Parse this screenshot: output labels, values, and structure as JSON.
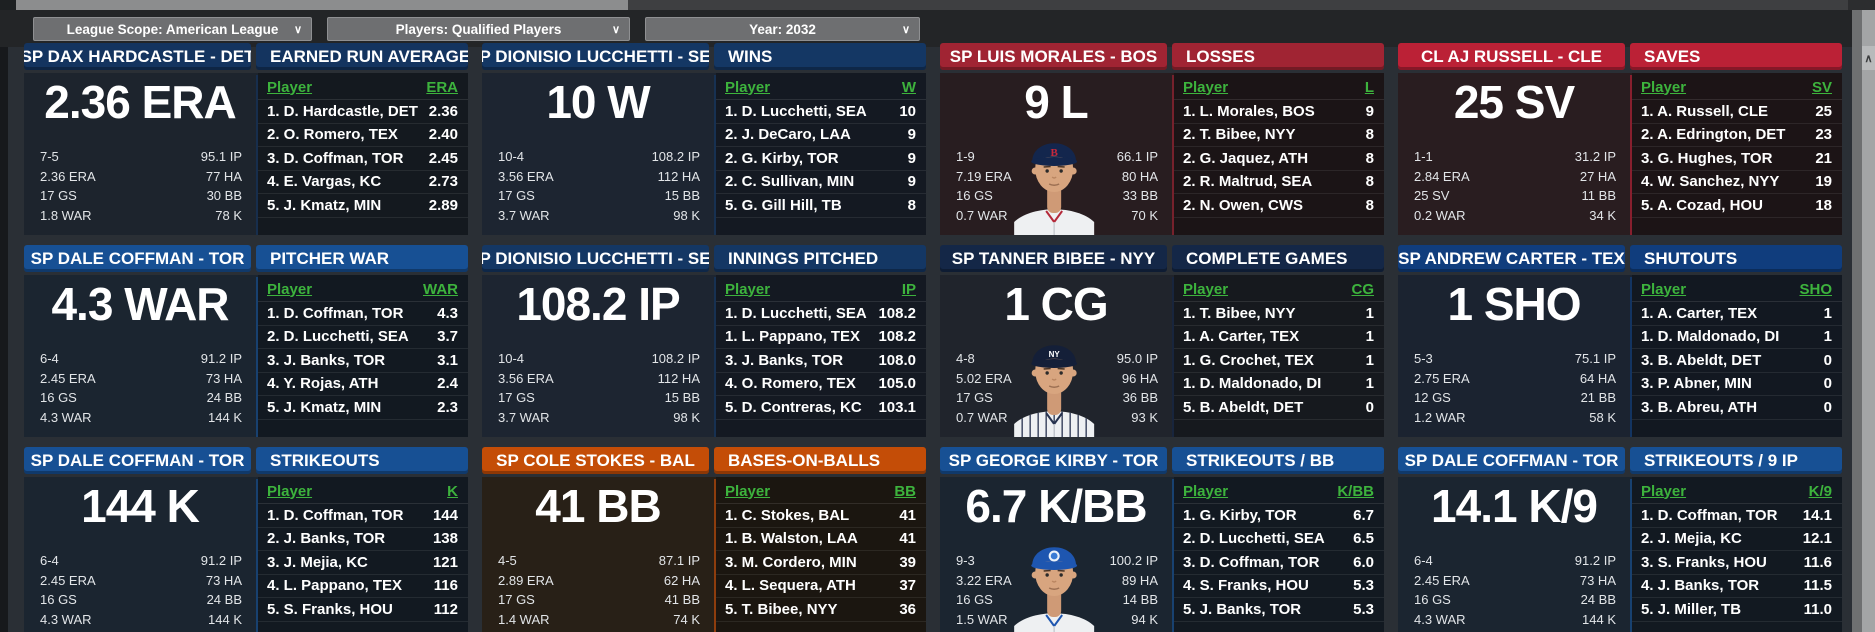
{
  "toolbar": {
    "dropdowns": [
      {
        "label": "League Scope: American League"
      },
      {
        "label": "Players: Qualified Players"
      },
      {
        "label": "Year: 2032"
      }
    ]
  },
  "icons": {
    "dropdown_chevron": "∨",
    "scroll_up_arrow": "∧"
  },
  "colors": {
    "green_accent": "#3db33d",
    "page_bg": "#2a2f35",
    "toolbar_bg": "#232527"
  },
  "leader_header_label": "Player",
  "panels": [
    {
      "player_header": "SP DAX HARDCASTLE - DET",
      "category": "EARNED RUN AVERAGE",
      "big_stat": "2.36 ERA",
      "col_label": "ERA",
      "accent": "#14345f",
      "body": "#1d242d",
      "photo": null,
      "stats_left": [
        "7-5",
        "2.36 ERA",
        "17 GS",
        "1.8 WAR"
      ],
      "stats_right": [
        "95.1 IP",
        "77 HA",
        "30 BB",
        "78 K"
      ],
      "leaders": [
        {
          "rank": "1.",
          "name": "D. Hardcastle, DET",
          "value": "2.36"
        },
        {
          "rank": "2.",
          "name": "O. Romero, TEX",
          "value": "2.40"
        },
        {
          "rank": "3.",
          "name": "D. Coffman, TOR",
          "value": "2.45"
        },
        {
          "rank": "4.",
          "name": "E. Vargas, KC",
          "value": "2.73"
        },
        {
          "rank": "5.",
          "name": "J. Kmatz, MIN",
          "value": "2.89"
        }
      ]
    },
    {
      "player_header": "SP DIONISIO LUCCHETTI - SEA",
      "category": "WINS",
      "big_stat": "10 W",
      "col_label": "W",
      "accent": "#143764",
      "body": "#1d2531",
      "photo": null,
      "stats_left": [
        "10-4",
        "3.56 ERA",
        "17 GS",
        "3.7 WAR"
      ],
      "stats_right": [
        "108.2 IP",
        "112 HA",
        "15 BB",
        "98 K"
      ],
      "leaders": [
        {
          "rank": "1.",
          "name": "D. Lucchetti, SEA",
          "value": "10"
        },
        {
          "rank": "2.",
          "name": "J. DeCaro, LAA",
          "value": "9"
        },
        {
          "rank": "2.",
          "name": "G. Kirby, TOR",
          "value": "9"
        },
        {
          "rank": "2.",
          "name": "C. Sullivan, MIN",
          "value": "9"
        },
        {
          "rank": "5.",
          "name": "G. Gill Hill, TB",
          "value": "8"
        }
      ]
    },
    {
      "player_header": "SP LUIS MORALES - BOS",
      "category": "LOSSES",
      "big_stat": "9 L",
      "col_label": "L",
      "accent": "#a02433",
      "body": "#281d20",
      "photo": "bos",
      "stats_left": [
        "1-9",
        "7.19 ERA",
        "16 GS",
        "0.7 WAR"
      ],
      "stats_right": [
        "66.1 IP",
        "80 HA",
        "33 BB",
        "70 K"
      ],
      "leaders": [
        {
          "rank": "1.",
          "name": "L. Morales, BOS",
          "value": "9"
        },
        {
          "rank": "2.",
          "name": "T. Bibee, NYY",
          "value": "8"
        },
        {
          "rank": "2.",
          "name": "G. Jaquez, ATH",
          "value": "8"
        },
        {
          "rank": "2.",
          "name": "R. Maltrud, SEA",
          "value": "8"
        },
        {
          "rank": "2.",
          "name": "N. Owen, CWS",
          "value": "8"
        }
      ]
    },
    {
      "player_header": "CL AJ RUSSELL - CLE",
      "category": "SAVES",
      "big_stat": "25 SV",
      "col_label": "SV",
      "accent": "#bb2136",
      "body": "#291d20",
      "photo": null,
      "stats_left": [
        "1-1",
        "2.84 ERA",
        "25 SV",
        "0.2 WAR"
      ],
      "stats_right": [
        "31.2 IP",
        "27 HA",
        "11 BB",
        "34 K"
      ],
      "leaders": [
        {
          "rank": "1.",
          "name": "A. Russell, CLE",
          "value": "25"
        },
        {
          "rank": "2.",
          "name": "A. Edrington, DET",
          "value": "23"
        },
        {
          "rank": "3.",
          "name": "G. Hughes, TOR",
          "value": "21"
        },
        {
          "rank": "4.",
          "name": "W. Sanchez, NYY",
          "value": "19"
        },
        {
          "rank": "5.",
          "name": "A. Cozad, HOU",
          "value": "18"
        }
      ]
    },
    {
      "player_header": "SP DALE COFFMAN - TOR",
      "category": "PITCHER WAR",
      "big_stat": "4.3 WAR",
      "col_label": "WAR",
      "accent": "#175094",
      "body": "#1b2530",
      "photo": null,
      "stats_left": [
        "6-4",
        "2.45 ERA",
        "16 GS",
        "4.3 WAR"
      ],
      "stats_right": [
        "91.2 IP",
        "73 HA",
        "24 BB",
        "144 K"
      ],
      "leaders": [
        {
          "rank": "1.",
          "name": "D. Coffman, TOR",
          "value": "4.3"
        },
        {
          "rank": "2.",
          "name": "D. Lucchetti, SEA",
          "value": "3.7"
        },
        {
          "rank": "3.",
          "name": "J. Banks, TOR",
          "value": "3.1"
        },
        {
          "rank": "4.",
          "name": "Y. Rojas, ATH",
          "value": "2.4"
        },
        {
          "rank": "5.",
          "name": "J. Kmatz, MIN",
          "value": "2.3"
        }
      ]
    },
    {
      "player_header": "SP DIONISIO LUCCHETTI - SEA",
      "category": "INNINGS PITCHED",
      "big_stat": "108.2 IP",
      "col_label": "IP",
      "accent": "#143764",
      "body": "#1d2531",
      "photo": null,
      "stats_left": [
        "10-4",
        "3.56 ERA",
        "17 GS",
        "3.7 WAR"
      ],
      "stats_right": [
        "108.2 IP",
        "112 HA",
        "15 BB",
        "98 K"
      ],
      "leaders": [
        {
          "rank": "1.",
          "name": "D. Lucchetti, SEA",
          "value": "108.2"
        },
        {
          "rank": "1.",
          "name": "L. Pappano, TEX",
          "value": "108.2"
        },
        {
          "rank": "3.",
          "name": "J. Banks, TOR",
          "value": "108.0"
        },
        {
          "rank": "4.",
          "name": "O. Romero, TEX",
          "value": "105.0"
        },
        {
          "rank": "5.",
          "name": "D. Contreras, KC",
          "value": "103.1"
        }
      ]
    },
    {
      "player_header": "SP TANNER BIBEE - NYY",
      "category": "COMPLETE GAMES",
      "big_stat": "1 CG",
      "col_label": "CG",
      "accent": "#142747",
      "body": "#20242c",
      "photo": "nyy",
      "stats_left": [
        "4-8",
        "5.02 ERA",
        "17 GS",
        "0.7 WAR"
      ],
      "stats_right": [
        "95.0 IP",
        "96 HA",
        "36 BB",
        "93 K"
      ],
      "leaders": [
        {
          "rank": "1.",
          "name": "T. Bibee, NYY",
          "value": "1"
        },
        {
          "rank": "1.",
          "name": "A. Carter, TEX",
          "value": "1"
        },
        {
          "rank": "1.",
          "name": "G. Crochet, TEX",
          "value": "1"
        },
        {
          "rank": "1.",
          "name": "D. Maldonado, DI",
          "value": "1"
        },
        {
          "rank": "5.",
          "name": "B. Abeldt, DET",
          "value": "0"
        }
      ]
    },
    {
      "player_header": "SP ANDREW CARTER - TEX",
      "category": "SHUTOUTS",
      "big_stat": "1 SHO",
      "col_label": "SHO",
      "accent": "#103d7d",
      "body": "#1b2330",
      "photo": null,
      "stats_left": [
        "5-3",
        "2.75 ERA",
        "12 GS",
        "1.2 WAR"
      ],
      "stats_right": [
        "75.1 IP",
        "64 HA",
        "21 BB",
        "58 K"
      ],
      "leaders": [
        {
          "rank": "1.",
          "name": "A. Carter, TEX",
          "value": "1"
        },
        {
          "rank": "1.",
          "name": "D. Maldonado, DI",
          "value": "1"
        },
        {
          "rank": "3.",
          "name": "B. Abeldt, DET",
          "value": "0"
        },
        {
          "rank": "3.",
          "name": "P. Abner, MIN",
          "value": "0"
        },
        {
          "rank": "3.",
          "name": "B. Abreu, ATH",
          "value": "0"
        }
      ]
    },
    {
      "player_header": "SP DALE COFFMAN - TOR",
      "category": "STRIKEOUTS",
      "big_stat": "144 K",
      "col_label": "K",
      "accent": "#175094",
      "body": "#1b2530",
      "photo": null,
      "stats_left": [
        "6-4",
        "2.45 ERA",
        "16 GS",
        "4.3 WAR"
      ],
      "stats_right": [
        "91.2 IP",
        "73 HA",
        "24 BB",
        "144 K"
      ],
      "leaders": [
        {
          "rank": "1.",
          "name": "D. Coffman, TOR",
          "value": "144"
        },
        {
          "rank": "2.",
          "name": "J. Banks, TOR",
          "value": "138"
        },
        {
          "rank": "3.",
          "name": "J. Mejia, KC",
          "value": "121"
        },
        {
          "rank": "4.",
          "name": "L. Pappano, TEX",
          "value": "116"
        },
        {
          "rank": "5.",
          "name": "S. Franks, HOU",
          "value": "112"
        }
      ]
    },
    {
      "player_header": "SP COLE STOKES - BAL",
      "category": "BASES-ON-BALLS",
      "big_stat": "41 BB",
      "col_label": "BB",
      "accent": "#c44d07",
      "body": "#282017",
      "photo": null,
      "stats_left": [
        "4-5",
        "2.89 ERA",
        "17 GS",
        "1.4 WAR"
      ],
      "stats_right": [
        "87.1 IP",
        "62 HA",
        "41 BB",
        "74 K"
      ],
      "leaders": [
        {
          "rank": "1.",
          "name": "C. Stokes, BAL",
          "value": "41"
        },
        {
          "rank": "1.",
          "name": "B. Walston, LAA",
          "value": "41"
        },
        {
          "rank": "3.",
          "name": "M. Cordero, MIN",
          "value": "39"
        },
        {
          "rank": "4.",
          "name": "L. Sequera, ATH",
          "value": "37"
        },
        {
          "rank": "5.",
          "name": "T. Bibee, NYY",
          "value": "36"
        }
      ]
    },
    {
      "player_header": "SP GEORGE KIRBY - TOR",
      "category": "STRIKEOUTS / BB",
      "big_stat": "6.7 K/BB",
      "col_label": "K/BB",
      "accent": "#175094",
      "body": "#1b2530",
      "photo": "tor",
      "stats_left": [
        "9-3",
        "3.22 ERA",
        "16 GS",
        "1.5 WAR"
      ],
      "stats_right": [
        "100.2 IP",
        "89 HA",
        "14 BB",
        "94 K"
      ],
      "leaders": [
        {
          "rank": "1.",
          "name": "G. Kirby, TOR",
          "value": "6.7"
        },
        {
          "rank": "2.",
          "name": "D. Lucchetti, SEA",
          "value": "6.5"
        },
        {
          "rank": "3.",
          "name": "D. Coffman, TOR",
          "value": "6.0"
        },
        {
          "rank": "4.",
          "name": "S. Franks, HOU",
          "value": "5.3"
        },
        {
          "rank": "5.",
          "name": "J. Banks, TOR",
          "value": "5.3"
        }
      ]
    },
    {
      "player_header": "SP DALE COFFMAN - TOR",
      "category": "STRIKEOUTS / 9 IP",
      "big_stat": "14.1 K/9",
      "col_label": "K/9",
      "accent": "#175094",
      "body": "#1b2530",
      "photo": null,
      "stats_left": [
        "6-4",
        "2.45 ERA",
        "16 GS",
        "4.3 WAR"
      ],
      "stats_right": [
        "91.2 IP",
        "73 HA",
        "24 BB",
        "144 K"
      ],
      "leaders": [
        {
          "rank": "1.",
          "name": "D. Coffman, TOR",
          "value": "14.1"
        },
        {
          "rank": "2.",
          "name": "J. Mejia, KC",
          "value": "12.1"
        },
        {
          "rank": "3.",
          "name": "S. Franks, HOU",
          "value": "11.6"
        },
        {
          "rank": "4.",
          "name": "J. Banks, TOR",
          "value": "11.5"
        },
        {
          "rank": "5.",
          "name": "J. Miller, TB",
          "value": "11.0"
        }
      ]
    }
  ]
}
